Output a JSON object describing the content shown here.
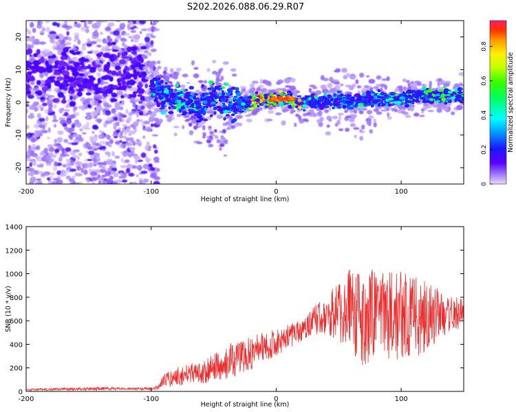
{
  "title": "S202.2026.088.06.29.R07",
  "chart_data": [
    {
      "type": "heatmap",
      "name": "spectrogram",
      "xlabel": "Height of straight line (km)",
      "ylabel": "Frequency (Hz)",
      "xlim": [
        -200,
        150
      ],
      "ylim": [
        -25,
        25
      ],
      "xticks": [
        -200,
        -100,
        0,
        100
      ],
      "yticks": [
        -20,
        -10,
        0,
        10,
        20
      ],
      "colorbar": {
        "label": "Normalized spectral amplitude",
        "range": [
          0,
          0.95
        ],
        "ticks": [
          0,
          0.2,
          0.4,
          0.6,
          0.8
        ]
      },
      "ridge": {
        "description": "dominant frequency vs height",
        "x": [
          -100,
          -90,
          -80,
          -70,
          -60,
          -50,
          -40,
          -30,
          -20,
          -10,
          0,
          10,
          20,
          30,
          40,
          50,
          60,
          70,
          80,
          90,
          100,
          110,
          120,
          130,
          140,
          150
        ],
        "y": [
          4,
          2,
          1,
          0,
          -1,
          2,
          0,
          -1,
          0,
          1,
          1,
          1,
          0,
          0,
          0,
          1,
          0,
          1,
          1,
          1,
          1,
          2,
          2,
          2,
          2,
          2
        ]
      }
    },
    {
      "type": "line",
      "name": "snr",
      "xlabel": "Height of straight line (km)",
      "ylabel": "SNR (10 * v/v)",
      "xlim": [
        -200,
        150
      ],
      "ylim": [
        0,
        1400
      ],
      "xticks": [
        -200,
        -100,
        0,
        100
      ],
      "yticks": [
        0,
        200,
        400,
        600,
        800,
        1000,
        1200,
        1400
      ],
      "color": "#ee2a2a",
      "envelope": {
        "x": [
          -200,
          -180,
          -160,
          -140,
          -120,
          -100,
          -95,
          -90,
          -80,
          -70,
          -60,
          -50,
          -40,
          -30,
          -20,
          -10,
          0,
          10,
          20,
          30,
          40,
          50,
          60,
          70,
          80,
          90,
          100,
          110,
          120,
          130,
          140,
          150
        ],
        "mean": [
          15,
          18,
          20,
          25,
          20,
          22,
          30,
          90,
          120,
          150,
          160,
          200,
          240,
          300,
          320,
          380,
          420,
          470,
          530,
          600,
          650,
          680,
          680,
          660,
          650,
          640,
          640,
          630,
          640,
          650,
          660,
          670
        ],
        "amplitude": [
          8,
          10,
          12,
          15,
          10,
          12,
          20,
          60,
          80,
          90,
          100,
          120,
          140,
          160,
          140,
          130,
          120,
          110,
          110,
          120,
          180,
          260,
          380,
          450,
          400,
          380,
          380,
          350,
          300,
          220,
          160,
          120
        ]
      }
    }
  ]
}
